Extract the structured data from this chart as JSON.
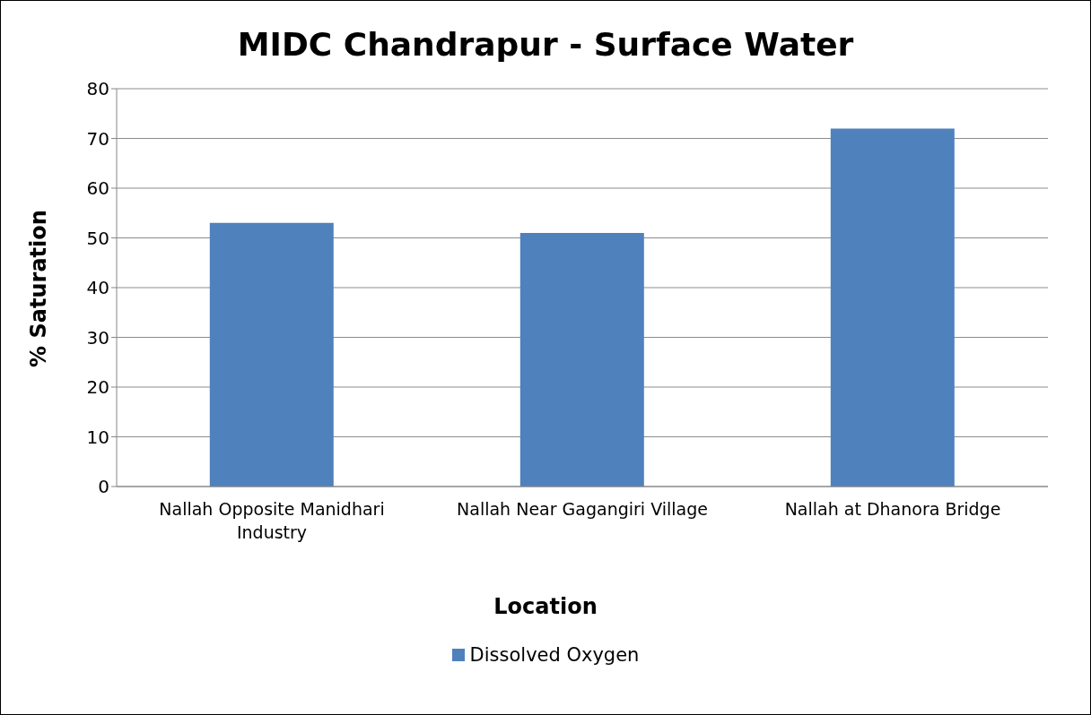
{
  "chart_data": {
    "type": "bar",
    "title": "MIDC Chandrapur - Surface Water",
    "xlabel": "Location",
    "ylabel": "% Saturation",
    "categories": [
      "Nallah Opposite Manidhari Industry",
      "Nallah Near Gagangiri Village",
      "Nallah at Dhanora Bridge"
    ],
    "series": [
      {
        "name": "Dissolved Oxygen",
        "color": "#4f81bd",
        "values": [
          53,
          51,
          72
        ]
      }
    ],
    "ylim": [
      0,
      80
    ],
    "yticks": [
      0,
      10,
      20,
      30,
      40,
      50,
      60,
      70,
      80
    ],
    "grid": "y",
    "legend": "bottom"
  }
}
